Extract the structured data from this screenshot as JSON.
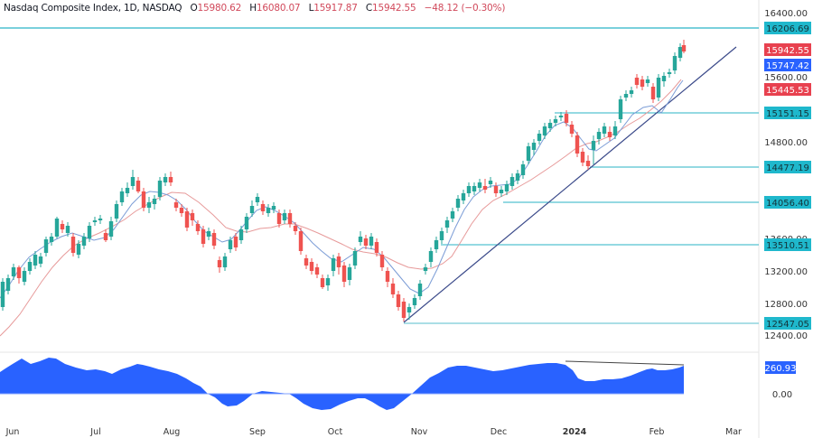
{
  "header": {
    "symbol_desc": "Nasdaq Composite Index, 1D, NASDAQ",
    "open_label": "O",
    "open": "15980.62",
    "high_label": "H",
    "high": "16080.07",
    "low_label": "L",
    "low": "15917.87",
    "close_label": "C",
    "close": "15942.55",
    "change": "−48.12 (−0.30%)"
  },
  "colors": {
    "up": "#26a69a",
    "down": "#ef5350",
    "ma_fast": "#7b9cd6",
    "ma_slow": "#e79a9a",
    "trendline": "#3b4a8a",
    "level": "#2ab3c6",
    "level_tag": "#1fb8cc",
    "last_price_tag": "#e8414f",
    "ma_fast_tag": "#2962ff",
    "ma_slow_tag": "#e8414f",
    "oscillator": "#2962ff"
  },
  "price_axis": {
    "ticks": [
      "16400.00",
      "15600.00",
      "14800.00",
      "13600.00",
      "13200.00",
      "12800.00",
      "12400.00"
    ],
    "tags": [
      {
        "label": "16206.69",
        "kind": "level"
      },
      {
        "label": "15942.55",
        "kind": "last"
      },
      {
        "label": "15747.42",
        "kind": "ma_fast"
      },
      {
        "label": "15445.53",
        "kind": "ma_slow"
      },
      {
        "label": "15151.15",
        "kind": "level"
      },
      {
        "label": "14477.19",
        "kind": "level"
      },
      {
        "label": "14056.40",
        "kind": "level"
      },
      {
        "label": "13510.51",
        "kind": "level"
      },
      {
        "label": "12547.05",
        "kind": "level"
      }
    ]
  },
  "oscillator_axis": {
    "value_tag": "260.93",
    "zero_tick": "0.00"
  },
  "time_axis": {
    "labels": [
      "Jun",
      "Jul",
      "Aug",
      "Sep",
      "Oct",
      "Nov",
      "Dec",
      "2024",
      "Feb",
      "Mar"
    ]
  },
  "chart_data": {
    "type": "candlestick",
    "title": "Nasdaq Composite Index, 1D, NASDAQ",
    "xlabel": "",
    "ylabel": "",
    "ylim": [
      12400,
      16400
    ],
    "x_ticks": [
      "Jun",
      "Jul",
      "Aug",
      "Sep",
      "Oct",
      "Nov",
      "Dec",
      "2024",
      "Feb",
      "Mar"
    ],
    "y_ticks": [
      12400,
      12800,
      13200,
      13600,
      14800,
      15600,
      16400
    ],
    "last_bar": {
      "open": 15980.62,
      "high": 16080.07,
      "low": 15917.87,
      "close": 15942.55,
      "change": -48.12,
      "change_pct": -0.3
    },
    "horizontal_levels": [
      16206.69,
      15151.15,
      14477.19,
      14056.4,
      13510.51,
      12547.05
    ],
    "moving_averages": [
      {
        "name": "MA fast",
        "last": 15747.42
      },
      {
        "name": "MA slow",
        "last": 15445.53
      }
    ],
    "trendline": {
      "from": {
        "date": "late Oct 2023",
        "price": 12547.05
      },
      "to": {
        "date": "late Feb 2024",
        "price": 16100
      }
    },
    "oscillator": {
      "last": 260.93,
      "zero_line": 0.0,
      "note": "bearish divergence line drawn from late Dec 2023 peak to Feb 2024"
    },
    "approx_closes_monthly": [
      {
        "month": "Jun 2023",
        "close": 13790
      },
      {
        "month": "Jul 2023",
        "close": 14350
      },
      {
        "month": "Aug 2023",
        "close": 14030
      },
      {
        "month": "Sep 2023",
        "close": 13220
      },
      {
        "month": "Oct 2023",
        "close": 12850
      },
      {
        "month": "Nov 2023",
        "close": 14230
      },
      {
        "month": "Dec 2023",
        "close": 15010
      },
      {
        "month": "Jan 2024",
        "close": 15160
      },
      {
        "month": "Feb 2024 (to date)",
        "close": 15942.55
      }
    ]
  }
}
